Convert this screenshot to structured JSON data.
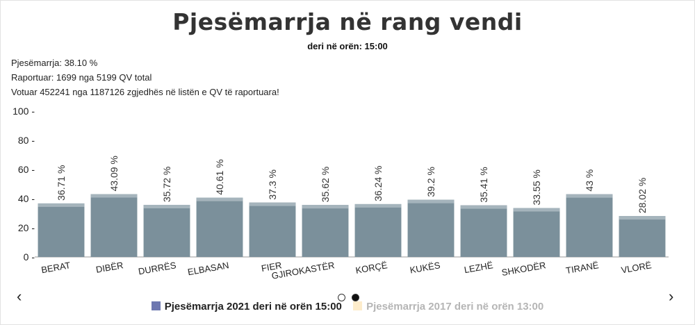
{
  "title": "Pjesëmarrja në rang vendi",
  "subtitle": "deri në orën: 15:00",
  "stats": {
    "participation": "Pjesëmarrja: 38.10 %",
    "reported": "Raportuar: 1699 nga 5199 QV total",
    "voted": "Votuar 452241 nga 1187126 zgjedhës në listën e QV të raportuara!"
  },
  "nav": {
    "prev": "‹",
    "next": "›"
  },
  "legend": [
    {
      "label": "Pjesëmarrja 2021 deri në orën 15:00",
      "color": "#6d77b0",
      "active": true
    },
    {
      "label": "Pjesëmarrja 2017 deri në orën 13:00",
      "color": "#fdeccb",
      "active": false
    }
  ],
  "colors": {
    "bar": "#7b909b",
    "bar_top": "#a5b4bc",
    "axis": "#9a9a9a"
  },
  "chart_data": {
    "type": "bar",
    "categories": [
      "BERAT",
      "DIBËR",
      "DURRËS",
      "ELBASAN",
      "FIER",
      "GJIROKASTËR",
      "KORÇË",
      "KUKËS",
      "LEZHË",
      "SHKODËR",
      "TIRANË",
      "VLORË"
    ],
    "series": [
      {
        "name": "Pjesëmarrja 2021 deri në orën 15:00",
        "values": [
          36.71,
          43.09,
          35.72,
          40.61,
          37.3,
          35.62,
          36.24,
          39.2,
          35.41,
          33.55,
          43,
          28.02
        ]
      }
    ],
    "data_labels": [
      "36.71 %",
      "43.09 %",
      "35.72 %",
      "40.61 %",
      "37.3 %",
      "35.62 %",
      "36.24 %",
      "39.2 %",
      "35.41 %",
      "33.55 %",
      "43 %",
      "28.02 %"
    ],
    "ylim": [
      0,
      100
    ],
    "yticks": [
      0,
      20,
      40,
      60,
      80,
      100
    ],
    "ytick_labels": [
      "0 -",
      "20 -",
      "40 -",
      "60 -",
      "80 -",
      "100 -"
    ],
    "grid": false,
    "legend_position": "bottom"
  }
}
